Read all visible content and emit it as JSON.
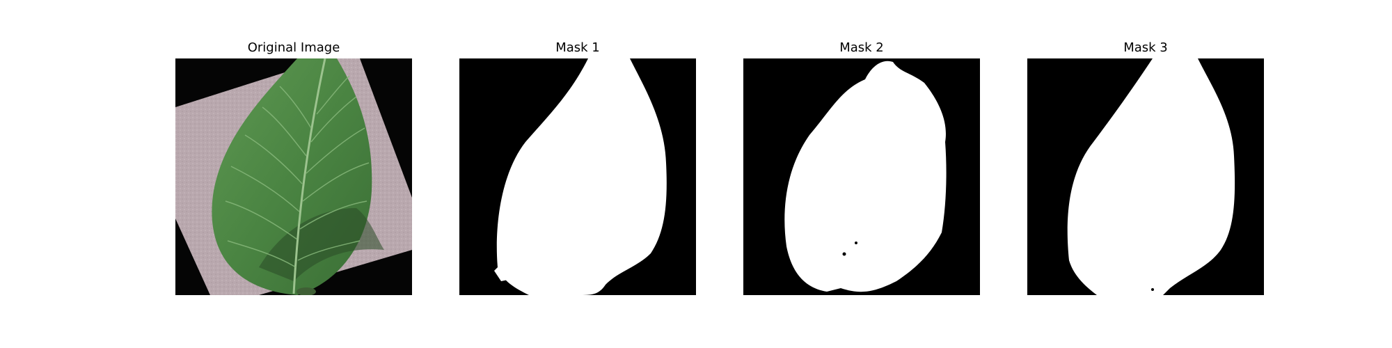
{
  "panels": [
    {
      "title": "Original Image",
      "kind": "photo",
      "subject": "leaf"
    },
    {
      "title": "Mask 1",
      "kind": "mask"
    },
    {
      "title": "Mask 2",
      "kind": "mask"
    },
    {
      "title": "Mask 3",
      "kind": "mask"
    }
  ],
  "colors": {
    "mask_foreground": "#ffffff",
    "mask_background": "#000000",
    "leaf_green": "#4f8a45",
    "leaf_dark": "#2d5a2a",
    "background_paper": "#b9a8ae"
  }
}
